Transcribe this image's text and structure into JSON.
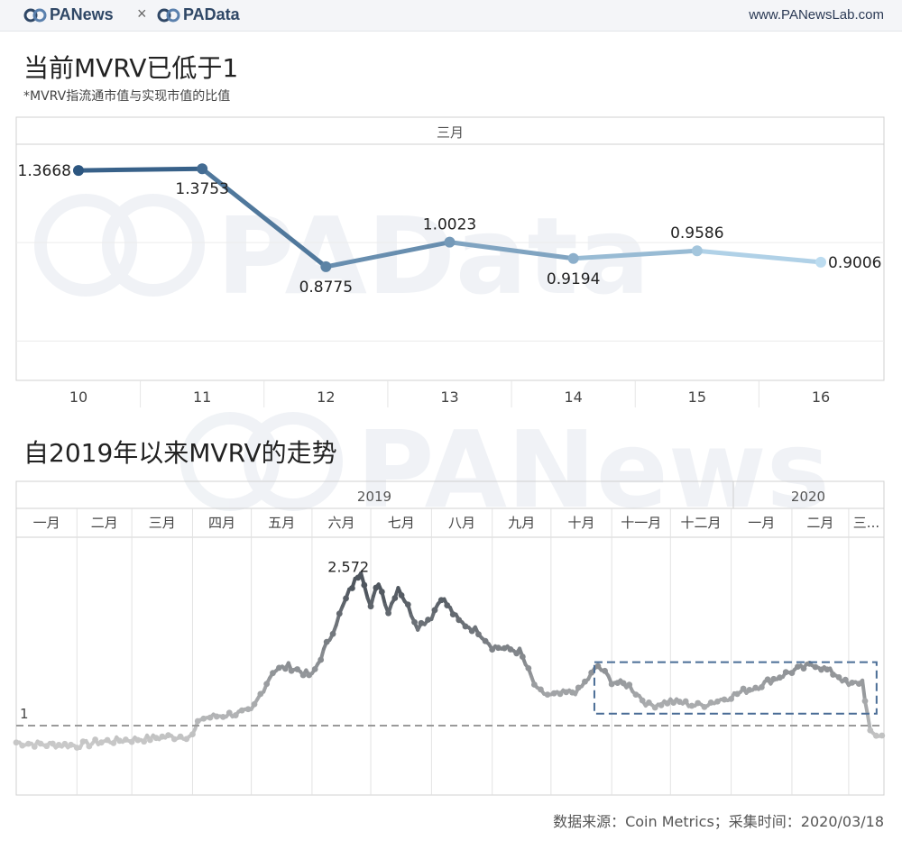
{
  "header": {
    "brand_left": "PANews",
    "separator": "×",
    "brand_right": "PAData",
    "site": "www.PANewsLab.com"
  },
  "colors": {
    "brand_dark": "#2f4766",
    "line_start": "#2c5680",
    "line_end": "#bcdcf0",
    "watermark": "#e8ecf1",
    "mvrv_dark": "#4f565e",
    "mvrv_light": "#c9c9c9",
    "highlight_box": "#4a6d96",
    "reference_line": "#999999"
  },
  "chart1": {
    "title": "当前MVRV已低于1",
    "subtitle": "*MVRV指流通市值与实现市值的比值",
    "month_header": "三月",
    "chart_data": {
      "type": "line",
      "title": "当前MVRV已低于1",
      "categories": [
        "10",
        "11",
        "12",
        "13",
        "14",
        "15",
        "16"
      ],
      "values": [
        1.3668,
        1.3753,
        0.8775,
        1.0023,
        0.9194,
        0.9586,
        0.9006
      ],
      "value_labels": [
        "1.3668",
        "1.3753",
        "0.8775",
        "1.0023",
        "0.9194",
        "0.9586",
        "0.9006"
      ],
      "ylim": [
        0.3,
        1.5
      ],
      "grid": true
    }
  },
  "chart2": {
    "title": "自2019年以来MVRV的走势",
    "year_labels": [
      "2019",
      "2020"
    ],
    "months": [
      "一月",
      "二月",
      "三月",
      "四月",
      "五月",
      "六月",
      "七月",
      "八月",
      "九月",
      "十月",
      "十一月",
      "十二月",
      "一月",
      "二月",
      "三..."
    ],
    "peak_label": "2.572",
    "reference_label": "1",
    "chart_data": {
      "type": "line",
      "title": "自2019年以来MVRV的走势",
      "x": [
        "2019-01-01",
        "2019-01-15",
        "2019-02-01",
        "2019-02-15",
        "2019-03-01",
        "2019-03-15",
        "2019-04-01",
        "2019-04-05",
        "2019-04-15",
        "2019-05-01",
        "2019-05-12",
        "2019-05-20",
        "2019-06-01",
        "2019-06-10",
        "2019-06-20",
        "2019-06-26",
        "2019-07-01",
        "2019-07-05",
        "2019-07-10",
        "2019-07-15",
        "2019-07-25",
        "2019-08-01",
        "2019-08-06",
        "2019-08-15",
        "2019-08-25",
        "2019-09-01",
        "2019-09-15",
        "2019-09-24",
        "2019-10-01",
        "2019-10-15",
        "2019-10-25",
        "2019-11-01",
        "2019-11-10",
        "2019-11-20",
        "2019-12-01",
        "2019-12-15",
        "2019-12-25",
        "2020-01-01",
        "2020-01-15",
        "2020-02-01",
        "2020-02-13",
        "2020-02-25",
        "2020-03-01",
        "2020-03-08",
        "2020-03-12",
        "2020-03-18"
      ],
      "values": [
        0.83,
        0.81,
        0.8,
        0.84,
        0.86,
        0.88,
        0.9,
        1.07,
        1.1,
        1.14,
        1.55,
        1.6,
        1.5,
        1.88,
        2.35,
        2.57,
        2.2,
        2.45,
        2.15,
        2.4,
        2.0,
        2.1,
        2.3,
        2.05,
        1.95,
        1.8,
        1.75,
        1.35,
        1.3,
        1.35,
        1.6,
        1.45,
        1.4,
        1.2,
        1.25,
        1.2,
        1.25,
        1.3,
        1.4,
        1.55,
        1.62,
        1.5,
        1.4,
        1.45,
        0.92,
        0.9
      ],
      "reference_value": 1,
      "highlight_range": [
        "2019-10-25",
        "2020-03-18"
      ],
      "ylim": [
        0.3,
        2.9
      ],
      "grid": true
    }
  },
  "watermarks": [
    "PAData",
    "PANews"
  ],
  "footer": "数据来源：Coin Metrics；采集时间：2020/03/18"
}
